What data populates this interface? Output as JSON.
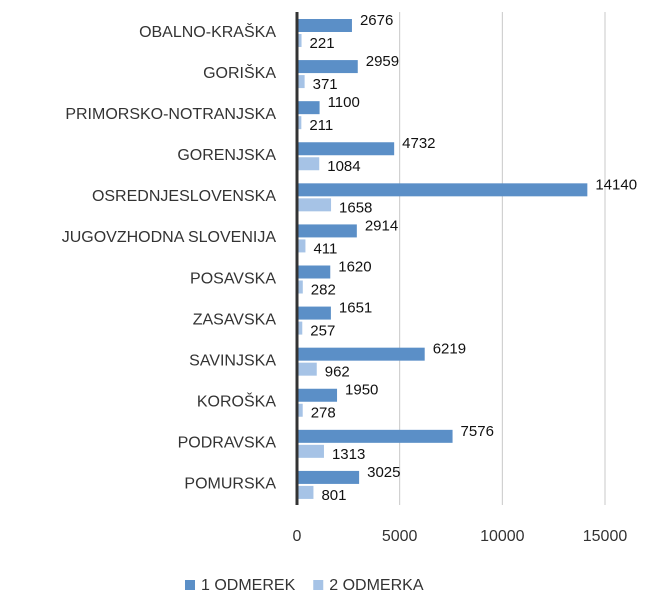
{
  "chart_data": {
    "type": "barh",
    "categories": [
      "OBALNO-KRAŠKA",
      "GORIŠKA",
      "PRIMORSKO-NOTRANJSKA",
      "GORENJSKA",
      "OSREDNJESLOVENSKA",
      "JUGOVZHODNA SLOVENIJA",
      "POSAVSKA",
      "ZASAVSKA",
      "SAVINJSKA",
      "KOROŠKA",
      "PODRAVSKA",
      "POMURSKA"
    ],
    "series": [
      {
        "name": "1 ODMEREK",
        "color": "#5b8fc7",
        "values": [
          2676,
          2959,
          1100,
          4732,
          14140,
          2914,
          1620,
          1651,
          6219,
          1950,
          7576,
          3025
        ]
      },
      {
        "name": "2 ODMERKA",
        "color": "#a6c3e6",
        "values": [
          221,
          371,
          211,
          1084,
          1658,
          411,
          282,
          257,
          962,
          278,
          1313,
          801
        ]
      }
    ],
    "xlim": [
      0,
      15000
    ],
    "xticks": [
      0,
      5000,
      10000,
      15000
    ],
    "grid": true,
    "legend": "bottom"
  }
}
